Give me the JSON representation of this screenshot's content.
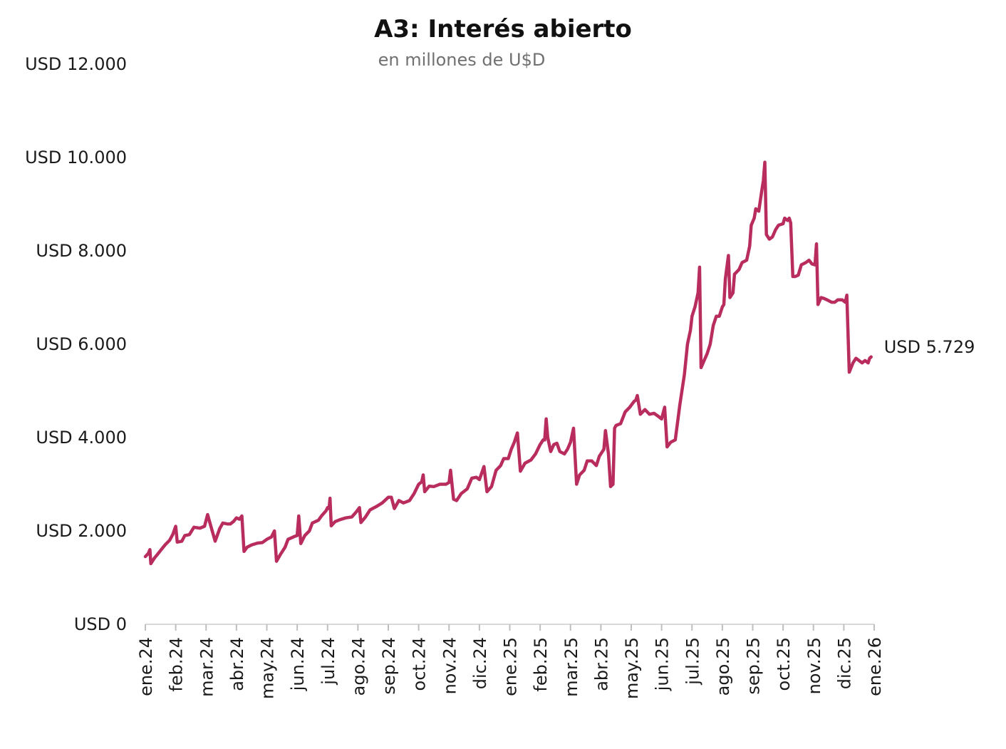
{
  "chart_data": {
    "type": "line",
    "title": "A3: Interés abierto",
    "subtitle": "en millones de U$D",
    "xlabel": "",
    "ylabel": "",
    "ylim": [
      0,
      12000
    ],
    "yticks": [
      0,
      2000,
      4000,
      6000,
      8000,
      10000,
      12000
    ],
    "ytick_labels": [
      "USD 0",
      "USD 2.000",
      "USD 4.000",
      "USD 6.000",
      "USD 8.000",
      "USD 10.000",
      "USD 12.000"
    ],
    "x_domain": [
      0,
      24
    ],
    "xticks": [
      0,
      1,
      2,
      3,
      4,
      5,
      6,
      7,
      8,
      9,
      10,
      11,
      12,
      13,
      14,
      15,
      16,
      17,
      18,
      19,
      20,
      21,
      22,
      23,
      24
    ],
    "xtick_labels": [
      "ene.24",
      "feb.24",
      "mar.24",
      "abr.24",
      "may.24",
      "jun.24",
      "jul.24",
      "ago.24",
      "sep.24",
      "oct.24",
      "nov.24",
      "dic.24",
      "ene.25",
      "feb.25",
      "mar.25",
      "abr.25",
      "may.25",
      "jun.25",
      "jul.25",
      "ago.25",
      "sep.25",
      "oct.25",
      "nov.25",
      "dic.25",
      "ene.26"
    ],
    "grid": false,
    "legend": "none",
    "line_color": "#b82c5e",
    "end_label": "USD 5.729",
    "series": [
      {
        "values": [
          [
            0.0,
            1450
          ],
          [
            0.1,
            1520
          ],
          [
            0.15,
            1600
          ],
          [
            0.18,
            1300
          ],
          [
            0.3,
            1420
          ],
          [
            0.4,
            1500
          ],
          [
            0.55,
            1620
          ],
          [
            0.65,
            1700
          ],
          [
            0.8,
            1800
          ],
          [
            0.9,
            1920
          ],
          [
            1.0,
            2100
          ],
          [
            1.05,
            1760
          ],
          [
            1.2,
            1780
          ],
          [
            1.3,
            1900
          ],
          [
            1.45,
            1920
          ],
          [
            1.6,
            2080
          ],
          [
            1.8,
            2060
          ],
          [
            1.95,
            2100
          ],
          [
            2.05,
            2350
          ],
          [
            2.15,
            2120
          ],
          [
            2.3,
            1780
          ],
          [
            2.45,
            2050
          ],
          [
            2.55,
            2170
          ],
          [
            2.7,
            2150
          ],
          [
            2.8,
            2150
          ],
          [
            2.9,
            2200
          ],
          [
            3.0,
            2280
          ],
          [
            3.1,
            2250
          ],
          [
            3.18,
            2320
          ],
          [
            3.25,
            1560
          ],
          [
            3.35,
            1650
          ],
          [
            3.5,
            1700
          ],
          [
            3.7,
            1740
          ],
          [
            3.85,
            1750
          ],
          [
            4.0,
            1820
          ],
          [
            4.15,
            1870
          ],
          [
            4.25,
            2000
          ],
          [
            4.32,
            1350
          ],
          [
            4.45,
            1500
          ],
          [
            4.6,
            1650
          ],
          [
            4.7,
            1820
          ],
          [
            4.9,
            1880
          ],
          [
            5.0,
            1900
          ],
          [
            5.05,
            2320
          ],
          [
            5.12,
            1730
          ],
          [
            5.25,
            1900
          ],
          [
            5.4,
            2000
          ],
          [
            5.5,
            2170
          ],
          [
            5.7,
            2230
          ],
          [
            5.8,
            2320
          ],
          [
            5.95,
            2430
          ],
          [
            6.0,
            2500
          ],
          [
            6.05,
            2480
          ],
          [
            6.08,
            2700
          ],
          [
            6.12,
            2110
          ],
          [
            6.25,
            2200
          ],
          [
            6.4,
            2240
          ],
          [
            6.6,
            2280
          ],
          [
            6.8,
            2300
          ],
          [
            6.95,
            2410
          ],
          [
            7.05,
            2500
          ],
          [
            7.1,
            2180
          ],
          [
            7.25,
            2300
          ],
          [
            7.4,
            2450
          ],
          [
            7.6,
            2520
          ],
          [
            7.8,
            2600
          ],
          [
            8.0,
            2720
          ],
          [
            8.1,
            2720
          ],
          [
            8.2,
            2480
          ],
          [
            8.35,
            2650
          ],
          [
            8.5,
            2600
          ],
          [
            8.7,
            2650
          ],
          [
            8.85,
            2800
          ],
          [
            9.0,
            3000
          ],
          [
            9.1,
            3050
          ],
          [
            9.15,
            3200
          ],
          [
            9.2,
            2840
          ],
          [
            9.35,
            2960
          ],
          [
            9.5,
            2950
          ],
          [
            9.7,
            3000
          ],
          [
            9.9,
            3000
          ],
          [
            10.0,
            3040
          ],
          [
            10.05,
            3300
          ],
          [
            10.15,
            2680
          ],
          [
            10.25,
            2650
          ],
          [
            10.4,
            2800
          ],
          [
            10.6,
            2900
          ],
          [
            10.75,
            3130
          ],
          [
            10.9,
            3150
          ],
          [
            11.0,
            3100
          ],
          [
            11.15,
            3380
          ],
          [
            11.25,
            2840
          ],
          [
            11.4,
            2950
          ],
          [
            11.55,
            3300
          ],
          [
            11.7,
            3400
          ],
          [
            11.8,
            3550
          ],
          [
            11.95,
            3550
          ],
          [
            12.05,
            3750
          ],
          [
            12.15,
            3900
          ],
          [
            12.25,
            4100
          ],
          [
            12.35,
            3280
          ],
          [
            12.5,
            3450
          ],
          [
            12.7,
            3520
          ],
          [
            12.85,
            3650
          ],
          [
            13.0,
            3850
          ],
          [
            13.1,
            3950
          ],
          [
            13.15,
            3950
          ],
          [
            13.2,
            4400
          ],
          [
            13.25,
            4000
          ],
          [
            13.35,
            3700
          ],
          [
            13.45,
            3850
          ],
          [
            13.55,
            3880
          ],
          [
            13.65,
            3700
          ],
          [
            13.8,
            3650
          ],
          [
            13.9,
            3750
          ],
          [
            14.0,
            3900
          ],
          [
            14.1,
            4200
          ],
          [
            14.2,
            3000
          ],
          [
            14.3,
            3200
          ],
          [
            14.45,
            3300
          ],
          [
            14.55,
            3500
          ],
          [
            14.7,
            3500
          ],
          [
            14.85,
            3400
          ],
          [
            14.95,
            3600
          ],
          [
            15.1,
            3750
          ],
          [
            15.15,
            4150
          ],
          [
            15.25,
            3650
          ],
          [
            15.32,
            2950
          ],
          [
            15.4,
            3000
          ],
          [
            15.45,
            4200
          ],
          [
            15.5,
            4260
          ],
          [
            15.65,
            4300
          ],
          [
            15.8,
            4550
          ],
          [
            15.95,
            4650
          ],
          [
            16.1,
            4780
          ],
          [
            16.15,
            4800
          ],
          [
            16.2,
            4900
          ],
          [
            16.3,
            4500
          ],
          [
            16.45,
            4600
          ],
          [
            16.6,
            4500
          ],
          [
            16.75,
            4520
          ],
          [
            16.9,
            4450
          ],
          [
            17.0,
            4400
          ],
          [
            17.1,
            4650
          ],
          [
            17.18,
            3800
          ],
          [
            17.3,
            3900
          ],
          [
            17.45,
            3950
          ],
          [
            17.6,
            4700
          ],
          [
            17.75,
            5350
          ],
          [
            17.85,
            6000
          ],
          [
            17.95,
            6300
          ],
          [
            18.0,
            6600
          ],
          [
            18.1,
            6800
          ],
          [
            18.2,
            7100
          ],
          [
            18.25,
            7650
          ],
          [
            18.3,
            5500
          ],
          [
            18.4,
            5650
          ],
          [
            18.5,
            5800
          ],
          [
            18.6,
            6000
          ],
          [
            18.7,
            6400
          ],
          [
            18.8,
            6600
          ],
          [
            18.9,
            6600
          ],
          [
            19.0,
            6800
          ],
          [
            19.05,
            6850
          ],
          [
            19.1,
            7400
          ],
          [
            19.2,
            7900
          ],
          [
            19.25,
            7000
          ],
          [
            19.35,
            7100
          ],
          [
            19.4,
            7500
          ],
          [
            19.55,
            7600
          ],
          [
            19.65,
            7750
          ],
          [
            19.8,
            7800
          ],
          [
            19.9,
            8100
          ],
          [
            19.95,
            8550
          ],
          [
            20.05,
            8700
          ],
          [
            20.1,
            8900
          ],
          [
            20.2,
            8850
          ],
          [
            20.3,
            9300
          ],
          [
            20.35,
            9500
          ],
          [
            20.4,
            9900
          ],
          [
            20.45,
            8350
          ],
          [
            20.55,
            8250
          ],
          [
            20.65,
            8300
          ],
          [
            20.75,
            8450
          ],
          [
            20.85,
            8550
          ],
          [
            21.0,
            8580
          ],
          [
            21.05,
            8700
          ],
          [
            21.15,
            8650
          ],
          [
            21.2,
            8700
          ],
          [
            21.25,
            8600
          ],
          [
            21.32,
            7450
          ],
          [
            21.4,
            7450
          ],
          [
            21.5,
            7480
          ],
          [
            21.6,
            7700
          ],
          [
            21.75,
            7750
          ],
          [
            21.85,
            7800
          ],
          [
            21.95,
            7720
          ],
          [
            22.05,
            7700
          ],
          [
            22.1,
            8150
          ],
          [
            22.15,
            6850
          ],
          [
            22.25,
            7000
          ],
          [
            22.35,
            6980
          ],
          [
            22.45,
            6950
          ],
          [
            22.6,
            6900
          ],
          [
            22.7,
            6900
          ],
          [
            22.8,
            6950
          ],
          [
            22.95,
            6950
          ],
          [
            23.05,
            6900
          ],
          [
            23.1,
            7050
          ],
          [
            23.18,
            5400
          ],
          [
            23.3,
            5600
          ],
          [
            23.4,
            5700
          ],
          [
            23.5,
            5650
          ],
          [
            23.6,
            5600
          ],
          [
            23.7,
            5650
          ],
          [
            23.8,
            5600
          ],
          [
            23.85,
            5700
          ],
          [
            23.9,
            5729
          ]
        ]
      }
    ]
  }
}
